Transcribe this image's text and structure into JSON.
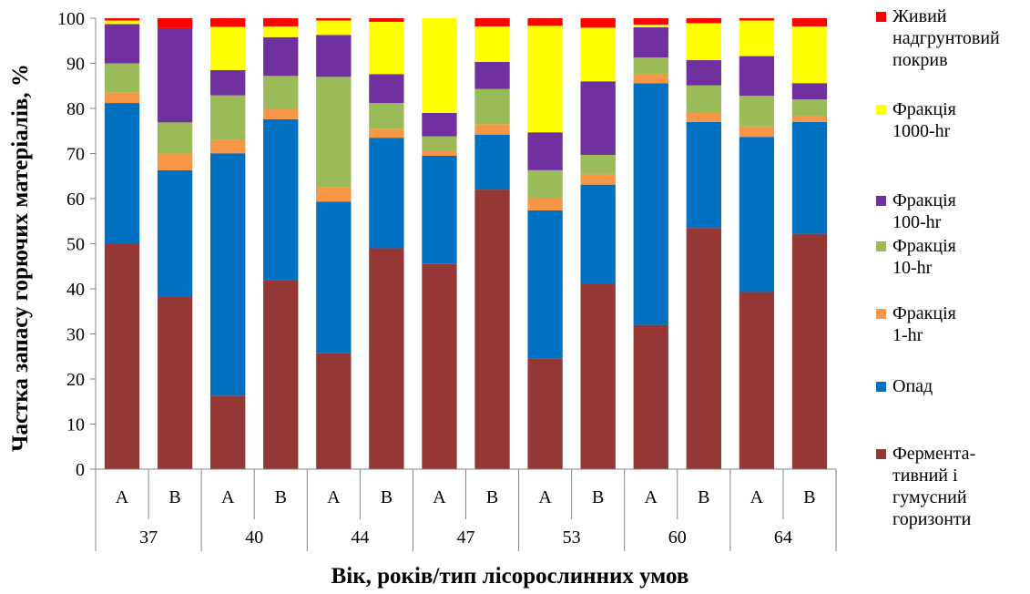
{
  "chart_data": {
    "type": "bar",
    "stacked": true,
    "grid": false,
    "legend_position": "right",
    "ylabel": "Частка запасу горючих матеріалів, %",
    "xlabel": "Вік, років/тип лісорослинних умов",
    "ylim": [
      0,
      100
    ],
    "yticks": [
      "0",
      "10",
      "20",
      "30",
      "40",
      "50",
      "60",
      "70",
      "80",
      "90",
      "100"
    ],
    "groups": [
      {
        "label": "37",
        "categories": [
          "A",
          "B"
        ]
      },
      {
        "label": "40",
        "categories": [
          "A",
          "B"
        ]
      },
      {
        "label": "44",
        "categories": [
          "A",
          "B"
        ]
      },
      {
        "label": "47",
        "categories": [
          "A",
          "B"
        ]
      },
      {
        "label": "53",
        "categories": [
          "A",
          "B"
        ]
      },
      {
        "label": "60",
        "categories": [
          "A",
          "B"
        ]
      },
      {
        "label": "64",
        "categories": [
          "A",
          "B"
        ]
      }
    ],
    "series": [
      {
        "name": "Фермента-тивний і гумусний горизонти",
        "legend_lines": [
          "Фермента-",
          "тивний і",
          "гумусний",
          "горизонти"
        ],
        "color": "#953735",
        "values": [
          50,
          38.3,
          16.3,
          42,
          25.8,
          49,
          45.5,
          62,
          24.6,
          41.2,
          32,
          53.5,
          39.3,
          52.2
        ]
      },
      {
        "name": "Опад",
        "legend_lines": [
          "Опад"
        ],
        "color": "#0070C0",
        "values": [
          31.2,
          28,
          53.7,
          35.6,
          33.5,
          24.5,
          24,
          12.2,
          32.8,
          21.9,
          53.6,
          23.5,
          34.4,
          24.8
        ]
      },
      {
        "name": "Фракція 1-hr",
        "legend_lines": [
          "Фракція",
          "1-hr"
        ],
        "color": "#F79646",
        "values": [
          2.3,
          3.7,
          3,
          2.4,
          3.2,
          2,
          1,
          2.3,
          2.6,
          2.4,
          1.9,
          2,
          2.3,
          1.3
        ]
      },
      {
        "name": "Фракція 10-hr",
        "legend_lines": [
          "Фракція",
          "10-hr"
        ],
        "color": "#9BBB59",
        "values": [
          6.5,
          6.9,
          9.9,
          7.2,
          24.5,
          5.7,
          3.3,
          7.8,
          6.3,
          4.2,
          3.8,
          6.1,
          6.8,
          3.7
        ]
      },
      {
        "name": "Фракція 100-hr",
        "legend_lines": [
          "Фракція",
          "100-hr"
        ],
        "color": "#7030A0",
        "values": [
          8.7,
          20.9,
          5.6,
          8.6,
          9.3,
          6.4,
          5.2,
          6,
          8.4,
          16.3,
          6.7,
          5.6,
          8.8,
          3.6
        ]
      },
      {
        "name": "Фракція 1000-hr",
        "legend_lines": [
          "Фракція",
          "1000-hr"
        ],
        "color": "#FFFF00",
        "values": [
          0.8,
          0,
          9.6,
          2.4,
          3.2,
          11.6,
          21,
          7.9,
          23.6,
          11.9,
          0.6,
          8.2,
          7.9,
          12.6
        ]
      },
      {
        "name": "Живий надгрунтовий покрив",
        "legend_lines": [
          "Живий",
          "надгрунтовий",
          "покрив"
        ],
        "color": "#FF0000",
        "values": [
          0.5,
          2.2,
          1.9,
          1.8,
          0.5,
          0.8,
          0,
          1.8,
          1.7,
          2.1,
          1.4,
          1.1,
          0.5,
          1.8
        ]
      }
    ]
  }
}
